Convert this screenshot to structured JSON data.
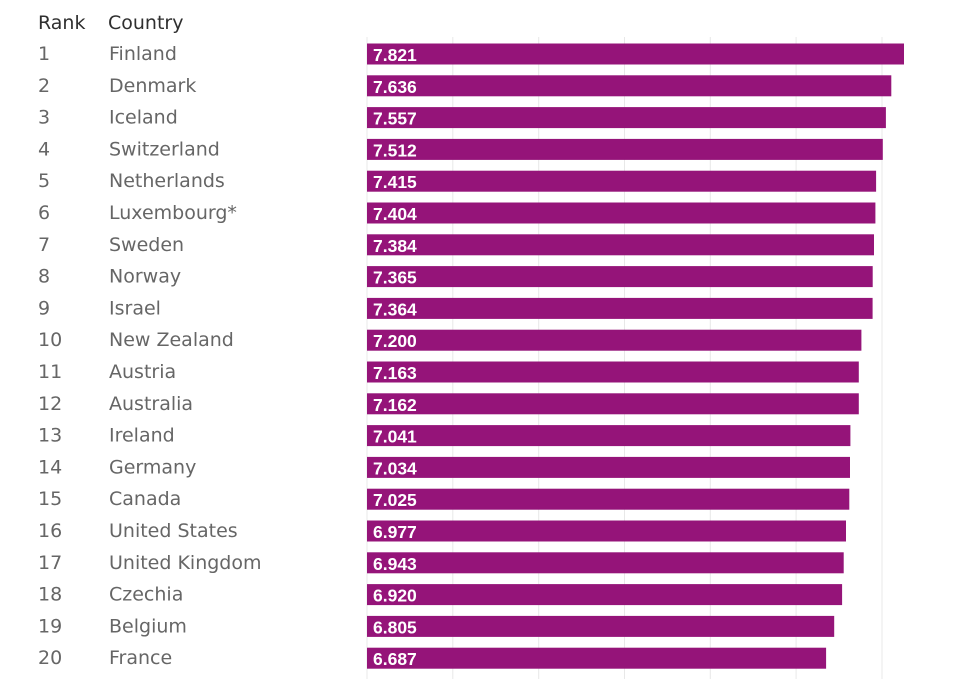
{
  "header": {
    "rank_label": "Rank",
    "country_label": "Country"
  },
  "colors": {
    "bar": "#951479",
    "value_text": "#ffffff",
    "row_text": "#666666",
    "grid": "#e8e8e8"
  },
  "chart_data": {
    "type": "bar",
    "orientation": "horizontal",
    "title": "",
    "xlabel": "",
    "ylabel": "",
    "grid": true,
    "ranks": [
      "1",
      "2",
      "3",
      "4",
      "5",
      "6",
      "7",
      "8",
      "9",
      "10",
      "11",
      "12",
      "13",
      "14",
      "15",
      "16",
      "17",
      "18",
      "19",
      "20"
    ],
    "categories": [
      "Finland",
      "Denmark",
      "Iceland",
      "Switzerland",
      "Netherlands",
      "Luxembourg*",
      "Sweden",
      "Norway",
      "Israel",
      "New Zealand",
      "Austria",
      "Australia",
      "Ireland",
      "Germany",
      "Canada",
      "United States",
      "United Kingdom",
      "Czechia",
      "Belgium",
      "France"
    ],
    "values": [
      7.821,
      7.636,
      7.557,
      7.512,
      7.415,
      7.404,
      7.384,
      7.365,
      7.364,
      7.2,
      7.163,
      7.162,
      7.041,
      7.034,
      7.025,
      6.977,
      6.943,
      6.92,
      6.805,
      6.687
    ],
    "value_labels": [
      "7.821",
      "7.636",
      "7.557",
      "7.512",
      "7.415",
      "7.404",
      "7.384",
      "7.365",
      "7.364",
      "7.200",
      "7.163",
      "7.162",
      "7.041",
      "7.034",
      "7.025",
      "6.977",
      "6.943",
      "6.920",
      "6.805",
      "6.687"
    ]
  }
}
